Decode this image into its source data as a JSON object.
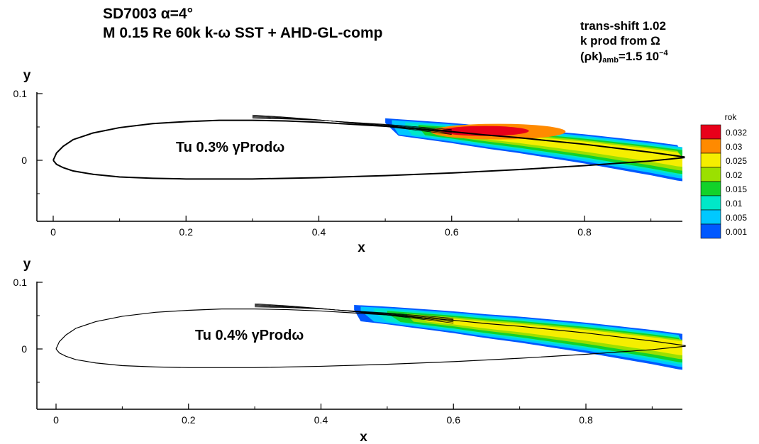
{
  "header": {
    "title_line1": "SD7003 α=4°",
    "title_line2": "M 0.15 Re 60k  k-ω SST + AHD-GL-comp",
    "settings_line1": "trans-shift 1.02",
    "settings_line2": "k prod  from Ω",
    "settings_line3_base": "(ρk)",
    "settings_line3_sub": "amb",
    "settings_line3_val": "=1.5 10",
    "settings_line3_exp": "−4"
  },
  "chart_data": [
    {
      "type": "contour",
      "annotation": "Tu 0.3%  γProdω",
      "xlabel": "x",
      "ylabel": "y",
      "xlim": [
        -0.03,
        0.95
      ],
      "ylim": [
        -0.095,
        0.1
      ],
      "x_ticks": [
        "0",
        "0.2",
        "0.4",
        "0.6",
        "0.8"
      ],
      "y_ticks": [
        "0",
        "0.1"
      ],
      "colorbar_title": "rok",
      "colorbar_levels": [
        "0.032",
        "0.03",
        "0.025",
        "0.02",
        "0.015",
        "0.01",
        "0.005",
        "0.001"
      ],
      "colorbar_colors": [
        "#e8001a",
        "#ff8a00",
        "#f5ee00",
        "#9be000",
        "#12d22a",
        "#00e8c8",
        "#00c8ff",
        "#0058ff"
      ],
      "region_x_start": 0.5,
      "peak_x": 0.63
    },
    {
      "type": "contour",
      "annotation": "Tu 0.4%  γProdω",
      "xlabel": "x",
      "ylabel": "y",
      "xlim": [
        -0.03,
        0.95
      ],
      "ylim": [
        -0.095,
        0.1
      ],
      "x_ticks": [
        "0",
        "0.2",
        "0.4",
        "0.6",
        "0.8"
      ],
      "y_ticks": [
        "0",
        "0.1"
      ],
      "region_x_start": 0.45
    }
  ]
}
